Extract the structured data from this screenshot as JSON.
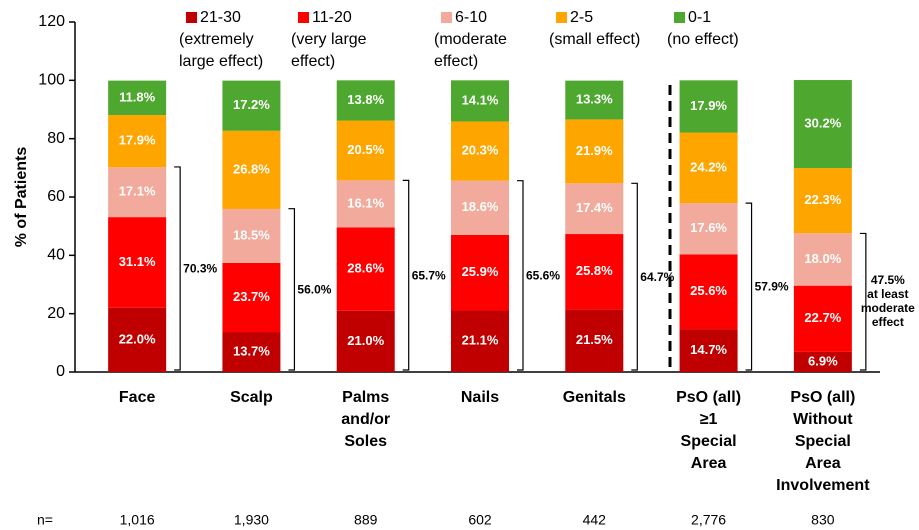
{
  "chart_data": {
    "type": "stacked_bar",
    "ylabel": "% of Patients",
    "ylim": [
      0,
      120
    ],
    "yticks": [
      0,
      20,
      40,
      60,
      80,
      100,
      120
    ],
    "grid": false,
    "categories": [
      [
        "Face"
      ],
      [
        "Scalp"
      ],
      [
        "Palms",
        "and/or",
        "Soles"
      ],
      [
        "Nails"
      ],
      [
        "Genitals"
      ],
      [
        "PsO (all)",
        "≥1",
        "Special",
        "Area"
      ],
      [
        "PsO (all)",
        "Without",
        "Special",
        "Area",
        "Involvement"
      ]
    ],
    "series": [
      {
        "name": "21-30",
        "legend_lines": [
          "(extremely",
          "large effect)"
        ],
        "color": "#c00000",
        "values": [
          22.0,
          13.7,
          21.0,
          21.1,
          21.5,
          14.7,
          6.9
        ],
        "value_labels": [
          "22.0%",
          "13.7%",
          "21.0%",
          "21.1%",
          "21.5%",
          "14.7%",
          "6.9%"
        ]
      },
      {
        "name": "11-20",
        "legend_lines": [
          "(very large",
          "effect)"
        ],
        "color": "#ff0000",
        "values": [
          31.1,
          23.7,
          28.6,
          25.9,
          25.8,
          25.6,
          22.7
        ],
        "value_labels": [
          "31.1%",
          "23.7%",
          "28.6%",
          "25.9%",
          "25.8%",
          "25.6%",
          "22.7%"
        ]
      },
      {
        "name": "6-10",
        "legend_lines": [
          "(moderate",
          "effect)"
        ],
        "color": "#f2aa9c",
        "values": [
          17.1,
          18.5,
          16.1,
          18.6,
          17.4,
          17.6,
          18.0
        ],
        "value_labels": [
          "17.1%",
          "18.5%",
          "16.1%",
          "18.6%",
          "17.4%",
          "17.6%",
          "18.0%"
        ]
      },
      {
        "name": "2-5",
        "legend_lines": [
          "(small effect)"
        ],
        "color": "#ffa500",
        "values": [
          17.9,
          26.8,
          20.5,
          20.3,
          21.9,
          24.2,
          22.3
        ],
        "value_labels": [
          "17.9%",
          "26.8%",
          "20.5%",
          "20.3%",
          "21.9%",
          "24.2%",
          "22.3%"
        ]
      },
      {
        "name": "0-1",
        "legend_lines": [
          "(no effect)"
        ],
        "color": "#4ea72e",
        "values": [
          11.8,
          17.2,
          13.8,
          14.1,
          13.3,
          17.9,
          30.2
        ],
        "value_labels": [
          "11.8%",
          "17.2%",
          "13.8%",
          "14.1%",
          "13.3%",
          "17.9%",
          "30.2%"
        ]
      }
    ],
    "brackets": [
      {
        "value": 70.3,
        "label": "70.3%"
      },
      {
        "value": 56.0,
        "label": "56.0%"
      },
      {
        "value": 65.7,
        "label": "65.7%"
      },
      {
        "value": 65.6,
        "label": "65.6%"
      },
      {
        "value": 64.7,
        "label": "64.7%"
      },
      {
        "value": 57.9,
        "label": "57.9%"
      },
      {
        "value": 47.5,
        "label": "47.5%",
        "note": [
          "at least",
          "moderate",
          "effect"
        ]
      }
    ],
    "n_label": "n=",
    "n": [
      {
        "value": 1016,
        "label": "1,016"
      },
      {
        "value": 1930,
        "label": "1,930"
      },
      {
        "value": 889,
        "label": "889"
      },
      {
        "value": 602,
        "label": "602"
      },
      {
        "value": 442,
        "label": "442"
      },
      {
        "value": 2776,
        "label": "2,776"
      },
      {
        "value": 830,
        "label": "830"
      }
    ]
  }
}
